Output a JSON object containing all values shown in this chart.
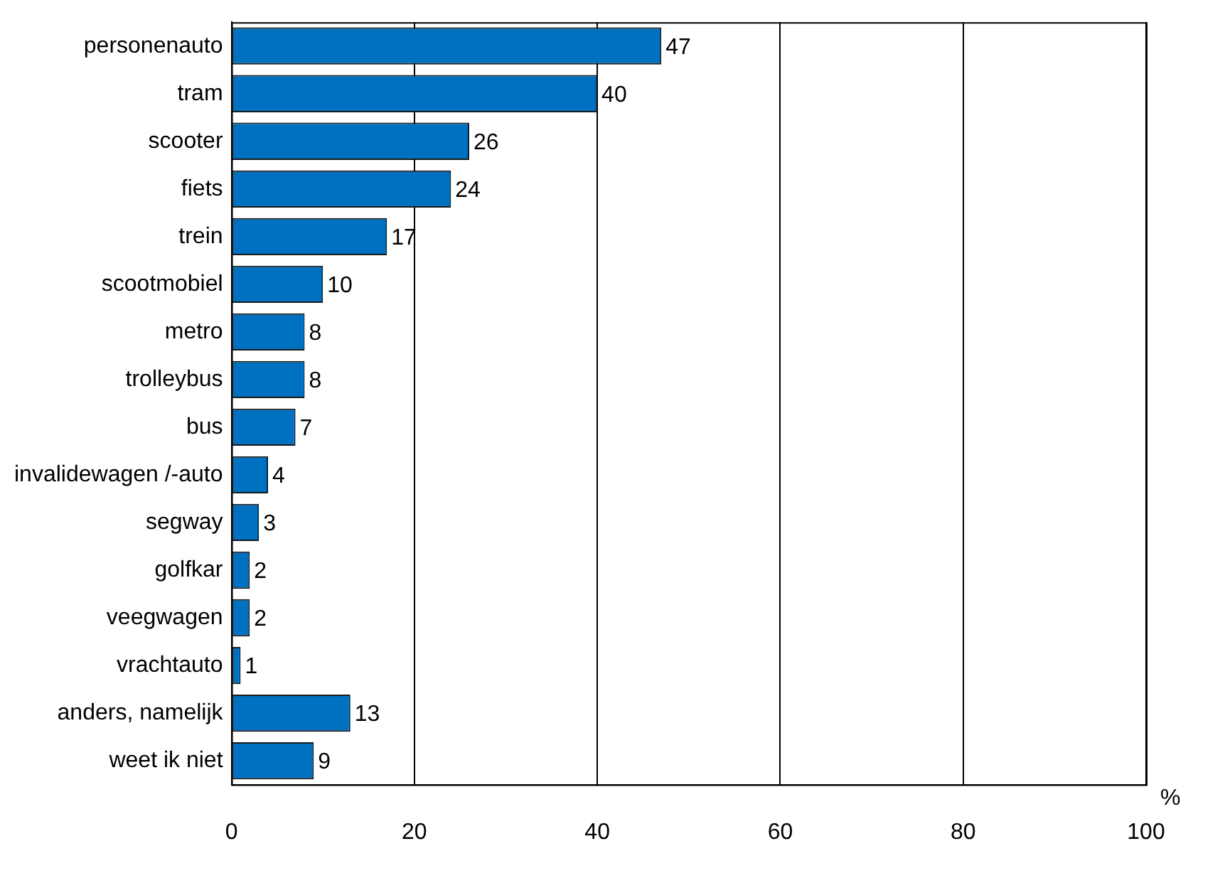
{
  "chart_data": {
    "type": "bar",
    "orientation": "horizontal",
    "xlabel": "%",
    "categories": [
      "personenauto",
      "tram",
      "scooter",
      "fiets",
      "trein",
      "scootmobiel",
      "metro",
      "trolleybus",
      "bus",
      "invalidewagen /-auto",
      "segway",
      "golfkar",
      "veegwagen",
      "vrachtauto",
      "anders, namelijk",
      "weet ik niet"
    ],
    "values": [
      47,
      40,
      26,
      24,
      17,
      10,
      8,
      8,
      7,
      4,
      3,
      2,
      2,
      1,
      13,
      9
    ],
    "color": "#0070c0",
    "xlim": [
      0,
      100
    ],
    "xticks": [
      0,
      20,
      40,
      60,
      80,
      100
    ],
    "grid": "x",
    "data_labels": true
  }
}
